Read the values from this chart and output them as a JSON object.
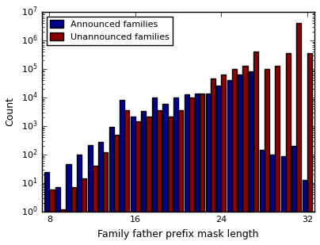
{
  "x_start": 8,
  "x_end": 32,
  "announced": [
    25,
    7,
    45,
    100,
    220,
    280,
    950,
    8000,
    2200,
    3400,
    10000,
    5800,
    10000,
    13000,
    14000,
    14000,
    26000,
    41000,
    63000,
    80000,
    150,
    100,
    90,
    200,
    13
  ],
  "unannounced": [
    6,
    1.2,
    7,
    15,
    40,
    120,
    500,
    3500,
    1500,
    2200,
    3500,
    2200,
    3500,
    10000,
    14000,
    45000,
    65000,
    100000,
    130000,
    400000,
    100000,
    130000,
    350000,
    4000000,
    350000
  ],
  "xlabel": "Family father prefix mask length",
  "ylabel": "Count",
  "announced_label": "Announced families",
  "unannounced_label": "Unannounced families",
  "announced_color": "#00008B",
  "unannounced_color": "#8B0000",
  "ylim_bottom": 1,
  "ylim_top": 10000000.0,
  "xticks": [
    8,
    16,
    24,
    32
  ],
  "figsize": [
    4.04,
    3.09
  ],
  "dpi": 100
}
